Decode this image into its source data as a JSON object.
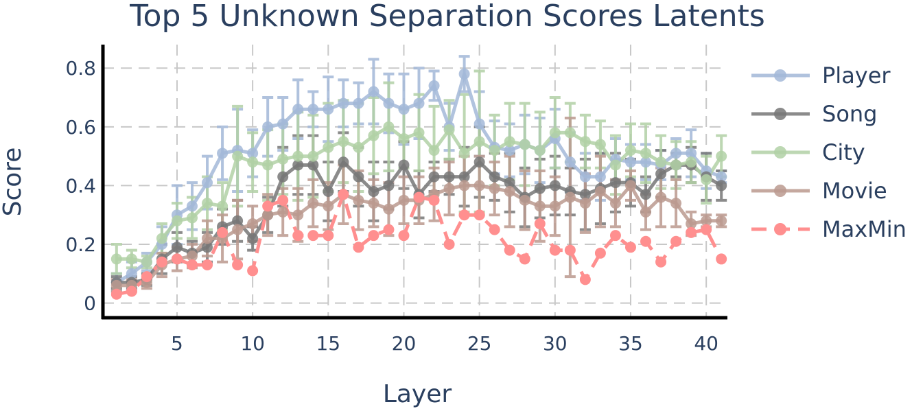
{
  "chart_data": {
    "type": "line",
    "title": "Top 5 Unknown Separation Scores Latents",
    "xlabel": "Layer",
    "ylabel": "Score",
    "xlim": [
      0.1,
      41.4
    ],
    "ylim": [
      -0.05,
      0.88
    ],
    "xticks": [
      5,
      10,
      15,
      20,
      25,
      30,
      35,
      40
    ],
    "xtick_labels": [
      "5",
      "10",
      "15",
      "20",
      "25",
      "30",
      "35",
      "40"
    ],
    "yticks": [
      0,
      0.2,
      0.4,
      0.6,
      0.8
    ],
    "ytick_labels": [
      "0",
      "0.2",
      "0.4",
      "0.6",
      "0.8"
    ],
    "grid": true,
    "legend_position": "right",
    "x": [
      1,
      2,
      3,
      4,
      5,
      6,
      7,
      8,
      9,
      10,
      11,
      12,
      13,
      14,
      15,
      16,
      17,
      18,
      19,
      20,
      21,
      22,
      23,
      24,
      25,
      26,
      27,
      28,
      29,
      30,
      31,
      32,
      33,
      34,
      35,
      36,
      37,
      38,
      39,
      40,
      41
    ],
    "series": [
      {
        "name": "Player",
        "color": "#a3b8d8",
        "dash": "solid",
        "values": [
          0.07,
          0.1,
          0.14,
          0.2,
          0.3,
          0.33,
          0.41,
          0.51,
          0.52,
          0.51,
          0.6,
          0.61,
          0.66,
          0.66,
          0.66,
          0.68,
          0.68,
          0.72,
          0.68,
          0.66,
          0.68,
          0.74,
          0.6,
          0.78,
          0.61,
          0.53,
          0.52,
          0.54,
          0.52,
          0.56,
          0.48,
          0.43,
          0.43,
          0.49,
          0.48,
          0.48,
          0.47,
          0.51,
          0.51,
          0.45,
          0.43
        ],
        "error": [
          0.03,
          0.04,
          0.03,
          0.06,
          0.1,
          0.08,
          0.09,
          0.09,
          0.14,
          0.08,
          0.1,
          0.09,
          0.1,
          0.06,
          0.11,
          0.08,
          0.07,
          0.11,
          0.1,
          0.12,
          0.12,
          0.05,
          0.08,
          0.06,
          0.11,
          0.09,
          0.09,
          0.1,
          0.11,
          0.1,
          0.1,
          0.08,
          0.08,
          0.07,
          0.06,
          0.06,
          0.05,
          0.05,
          0.08,
          0.06,
          0.02
        ]
      },
      {
        "name": "Song",
        "color": "#777777",
        "dash": "solid",
        "values": [
          0.07,
          0.07,
          0.08,
          0.15,
          0.19,
          0.17,
          0.19,
          0.26,
          0.28,
          0.22,
          0.3,
          0.43,
          0.47,
          0.47,
          0.38,
          0.48,
          0.43,
          0.38,
          0.4,
          0.47,
          0.37,
          0.43,
          0.43,
          0.43,
          0.48,
          0.43,
          0.41,
          0.36,
          0.39,
          0.4,
          0.38,
          0.37,
          0.39,
          0.41,
          0.41,
          0.37,
          0.44,
          0.47,
          0.47,
          0.43,
          0.4
        ],
        "error": [
          0.02,
          0.02,
          0.02,
          0.05,
          0.05,
          0.04,
          0.05,
          0.06,
          0.07,
          0.04,
          0.06,
          0.1,
          0.1,
          0.1,
          0.1,
          0.1,
          0.1,
          0.1,
          0.08,
          0.08,
          0.08,
          0.05,
          0.06,
          0.1,
          0.12,
          0.08,
          0.1,
          0.1,
          0.1,
          0.1,
          0.08,
          0.12,
          0.12,
          0.1,
          0.08,
          0.06,
          0.08,
          0.04,
          0.06,
          0.08,
          0.05
        ]
      },
      {
        "name": "City",
        "color": "#b2d1a6",
        "dash": "solid",
        "values": [
          0.15,
          0.15,
          0.14,
          0.22,
          0.28,
          0.29,
          0.34,
          0.33,
          0.5,
          0.48,
          0.47,
          0.49,
          0.5,
          0.5,
          0.53,
          0.55,
          0.53,
          0.57,
          0.6,
          0.56,
          0.58,
          0.52,
          0.59,
          0.51,
          0.55,
          0.52,
          0.55,
          0.54,
          0.52,
          0.58,
          0.58,
          0.55,
          0.54,
          0.47,
          0.52,
          0.51,
          0.48,
          0.47,
          0.48,
          0.42,
          0.5
        ],
        "error": [
          0.05,
          0.03,
          0.02,
          0.05,
          0.06,
          0.07,
          0.09,
          0.08,
          0.17,
          0.1,
          0.12,
          0.12,
          0.15,
          0.14,
          0.15,
          0.14,
          0.15,
          0.13,
          0.15,
          0.1,
          0.13,
          0.15,
          0.1,
          0.2,
          0.24,
          0.12,
          0.13,
          0.14,
          0.13,
          0.12,
          0.1,
          0.09,
          0.08,
          0.1,
          0.09,
          0.1,
          0.09,
          0.08,
          0.07,
          0.08,
          0.07
        ]
      },
      {
        "name": "Movie",
        "color": "#bb9a8f",
        "dash": "solid",
        "values": [
          0.06,
          0.06,
          0.07,
          0.13,
          0.15,
          0.16,
          0.22,
          0.22,
          0.25,
          0.27,
          0.3,
          0.31,
          0.3,
          0.34,
          0.33,
          0.37,
          0.35,
          0.34,
          0.32,
          0.35,
          0.35,
          0.37,
          0.39,
          0.4,
          0.4,
          0.39,
          0.38,
          0.35,
          0.33,
          0.33,
          0.36,
          0.34,
          0.38,
          0.34,
          0.4,
          0.31,
          0.36,
          0.34,
          0.27,
          0.28,
          0.28
        ],
        "error": [
          0.02,
          0.02,
          0.02,
          0.04,
          0.04,
          0.04,
          0.06,
          0.08,
          0.1,
          0.06,
          0.07,
          0.08,
          0.09,
          0.08,
          0.08,
          0.1,
          0.1,
          0.08,
          0.09,
          0.08,
          0.08,
          0.09,
          0.09,
          0.1,
          0.1,
          0.09,
          0.12,
          0.1,
          0.12,
          0.1,
          0.27,
          0.1,
          0.12,
          0.08,
          0.05,
          0.06,
          0.1,
          0.08,
          0.04,
          0.02,
          0.02
        ]
      },
      {
        "name": "MaxMin",
        "color": "#ff8f8f",
        "dash": "dashed",
        "values": [
          0.03,
          0.04,
          0.09,
          0.14,
          0.15,
          0.13,
          0.13,
          0.24,
          0.13,
          0.11,
          0.33,
          0.35,
          0.23,
          0.23,
          0.23,
          0.37,
          0.19,
          0.23,
          0.25,
          0.23,
          0.36,
          0.35,
          0.2,
          0.3,
          0.3,
          0.25,
          0.18,
          0.15,
          0.27,
          0.18,
          0.18,
          0.08,
          0.17,
          0.23,
          0.19,
          0.21,
          0.14,
          0.21,
          0.24,
          0.25,
          0.15
        ]
      }
    ]
  }
}
